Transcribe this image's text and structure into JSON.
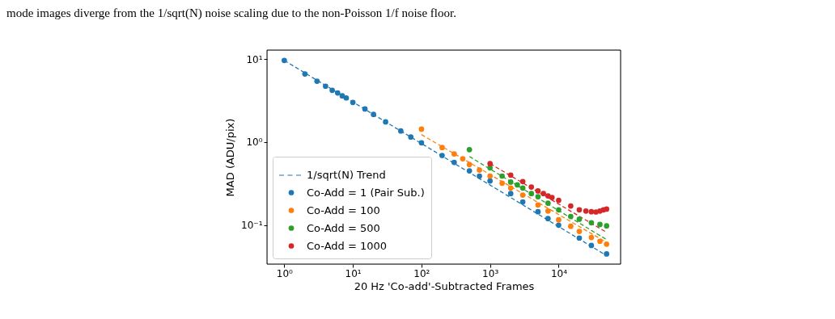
{
  "chart_data": {
    "type": "scatter",
    "annotations": [
      "mode images diverge from the 1/sqrt(N) noise scaling due to the non-Poisson 1/f noise floor."
    ],
    "xlabel": "20 Hz 'Co-add'-Subtracted Frames",
    "ylabel": "MAD (ADU/pix)",
    "log": "xy",
    "grid": false,
    "legend": "bottom left",
    "marker": "circle",
    "xlim": [
      0.56,
      80000
    ],
    "ylim": [
      0.034,
      12.8
    ],
    "xticks": [
      {
        "value": 1,
        "label": "10⁰"
      },
      {
        "value": 10,
        "label": "10¹"
      },
      {
        "value": 100,
        "label": "10²"
      },
      {
        "value": 1000,
        "label": "10³"
      },
      {
        "value": 10000,
        "label": "10⁴"
      }
    ],
    "yticks": [
      {
        "value": 0.1,
        "label": "10⁻¹"
      },
      {
        "value": 1,
        "label": "10⁰"
      },
      {
        "value": 10,
        "label": "10¹"
      }
    ],
    "series": [
      {
        "name": "1/sqrt(N) Trend",
        "type": "line",
        "marker": "none",
        "line_style": "dashed",
        "color": "#1f77b4",
        "x": [
          1,
          50000
        ],
        "values": [
          9.6,
          0.043
        ]
      },
      {
        "type": "line",
        "marker": "none",
        "line_style": "dashed",
        "color": "#ff7f0e",
        "x": [
          100,
          50000
        ],
        "values": [
          1.23,
          0.062
        ]
      },
      {
        "type": "line",
        "marker": "none",
        "line_style": "dashed",
        "color": "#2ca02c",
        "x": [
          500,
          50000
        ],
        "values": [
          0.67,
          0.067
        ]
      },
      {
        "type": "line",
        "marker": "none",
        "line_style": "dashed",
        "color": "#d62728",
        "x": [
          1000,
          50000
        ],
        "values": [
          0.55,
          0.082
        ]
      },
      {
        "name": "Co-Add = 1 (Pair Sub.)",
        "type": "scatter",
        "color": "#1f77b4",
        "x": [
          1,
          2,
          3,
          4,
          5,
          6,
          7,
          8,
          10,
          15,
          20,
          30,
          50,
          70,
          100,
          200,
          300,
          500,
          700,
          1000,
          2000,
          3000,
          5000,
          7000,
          10000,
          20000,
          30000,
          50000
        ],
        "values": [
          9.6,
          6.6,
          5.4,
          4.7,
          4.2,
          3.9,
          3.6,
          3.4,
          3.0,
          2.5,
          2.15,
          1.75,
          1.36,
          1.15,
          0.98,
          0.69,
          0.57,
          0.45,
          0.39,
          0.34,
          0.24,
          0.19,
          0.145,
          0.12,
          0.1,
          0.07,
          0.057,
          0.045
        ]
      },
      {
        "name": "Co-Add = 100",
        "type": "scatter",
        "color": "#ff7f0e",
        "x": [
          100,
          200,
          300,
          400,
          500,
          700,
          1000,
          1500,
          2000,
          3000,
          5000,
          7000,
          10000,
          15000,
          20000,
          30000,
          40000,
          50000
        ],
        "values": [
          1.43,
          0.86,
          0.72,
          0.63,
          0.535,
          0.46,
          0.39,
          0.32,
          0.28,
          0.23,
          0.175,
          0.148,
          0.116,
          0.097,
          0.084,
          0.071,
          0.064,
          0.059
        ]
      },
      {
        "name": "Co-Add = 500",
        "type": "scatter",
        "color": "#2ca02c",
        "x": [
          500,
          1000,
          1500,
          2000,
          2500,
          3000,
          4000,
          5000,
          7000,
          10000,
          15000,
          20000,
          30000,
          40000,
          50000
        ],
        "values": [
          0.81,
          0.49,
          0.39,
          0.33,
          0.305,
          0.28,
          0.24,
          0.22,
          0.184,
          0.153,
          0.127,
          0.118,
          0.107,
          0.102,
          0.098
        ]
      },
      {
        "name": "Co-Add = 1000",
        "type": "scatter",
        "color": "#d62728",
        "x": [
          1000,
          2000,
          3000,
          4000,
          5000,
          6000,
          7000,
          8000,
          10000,
          15000,
          20000,
          25000,
          30000,
          35000,
          40000,
          45000,
          50000
        ],
        "values": [
          0.55,
          0.4,
          0.335,
          0.288,
          0.258,
          0.24,
          0.225,
          0.215,
          0.199,
          0.17,
          0.153,
          0.148,
          0.145,
          0.144,
          0.148,
          0.153,
          0.156
        ]
      }
    ]
  }
}
